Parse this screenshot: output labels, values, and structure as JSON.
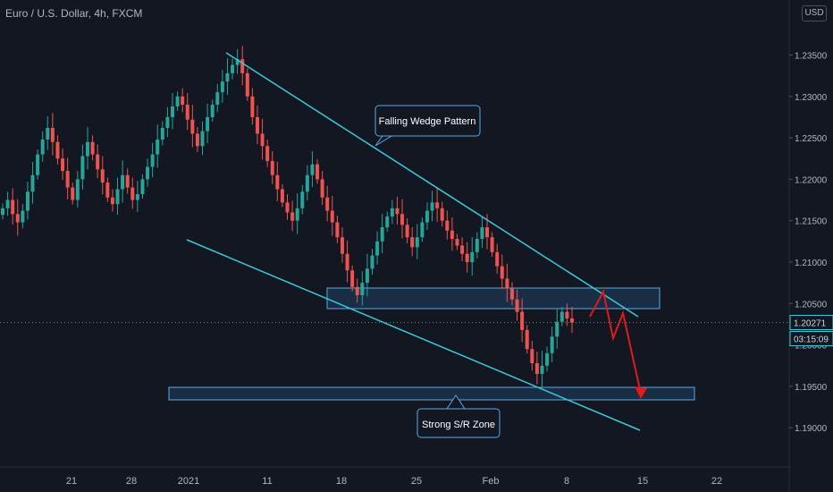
{
  "chart_title": "Euro / U.S. Dollar, 4h, FXCM",
  "currency_button": "USD",
  "colors": {
    "background": "#131722",
    "bull": "#26a69a",
    "bear": "#ef5350",
    "trendline": "#3cc8d8",
    "zone_fill": "#1c3550",
    "zone_border": "#5aa9e6",
    "projection": "#e01b1b",
    "axis_text": "#b2b5be"
  },
  "chart_data": {
    "type": "candlestick",
    "title": "Euro / U.S. Dollar, 4h, FXCM",
    "y_ticks": [
      "1.23500",
      "1.23000",
      "1.22500",
      "1.22000",
      "1.21500",
      "1.21000",
      "1.20500",
      "1.20000",
      "1.19500",
      "1.19000"
    ],
    "y_tick_values": [
      1.235,
      1.23,
      1.225,
      1.22,
      1.215,
      1.21,
      1.205,
      1.2,
      1.195,
      1.19
    ],
    "x_ticks": [
      "21",
      "28",
      "2021",
      "11",
      "18",
      "25",
      "Feb",
      "8",
      "15",
      "22"
    ],
    "current_price": "1.20271",
    "countdown": "03:15:09",
    "closes": [
      1.2165,
      1.2175,
      1.2158,
      1.2148,
      1.2162,
      1.2185,
      1.2205,
      1.223,
      1.2248,
      1.2262,
      1.2245,
      1.2225,
      1.221,
      1.219,
      1.2175,
      1.22,
      1.2228,
      1.2245,
      1.223,
      1.2212,
      1.2196,
      1.2178,
      1.217,
      1.2188,
      1.2205,
      1.219,
      1.2175,
      1.2182,
      1.22,
      1.2215,
      1.223,
      1.2248,
      1.2262,
      1.2275,
      1.2288,
      1.23,
      1.229,
      1.2272,
      1.2255,
      1.224,
      1.2258,
      1.2275,
      1.229,
      1.2305,
      1.2318,
      1.2328,
      1.2338,
      1.2345,
      1.2328,
      1.23,
      1.2275,
      1.2255,
      1.224,
      1.2222,
      1.2205,
      1.2188,
      1.2172,
      1.216,
      1.215,
      1.2165,
      1.2185,
      1.2205,
      1.2218,
      1.22,
      1.2178,
      1.2162,
      1.2148,
      1.213,
      1.211,
      1.209,
      1.207,
      1.206,
      1.2075,
      1.2092,
      1.2108,
      1.2125,
      1.2142,
      1.2155,
      1.2165,
      1.2158,
      1.2145,
      1.213,
      1.2118,
      1.213,
      1.2148,
      1.2162,
      1.2172,
      1.2165,
      1.215,
      1.2138,
      1.2128,
      1.212,
      1.211,
      1.21,
      1.2112,
      1.2128,
      1.2142,
      1.213,
      1.2112,
      1.2095,
      1.208,
      1.2068,
      1.2055,
      1.204,
      1.2018,
      1.1995,
      1.1978,
      1.1965,
      1.1975,
      1.199,
      1.201,
      1.2028,
      1.204,
      1.2032,
      1.2027
    ],
    "annotations": {
      "wedge_label": "Falling Wedge Pattern",
      "zone_label": "Strong S/R Zone"
    }
  }
}
